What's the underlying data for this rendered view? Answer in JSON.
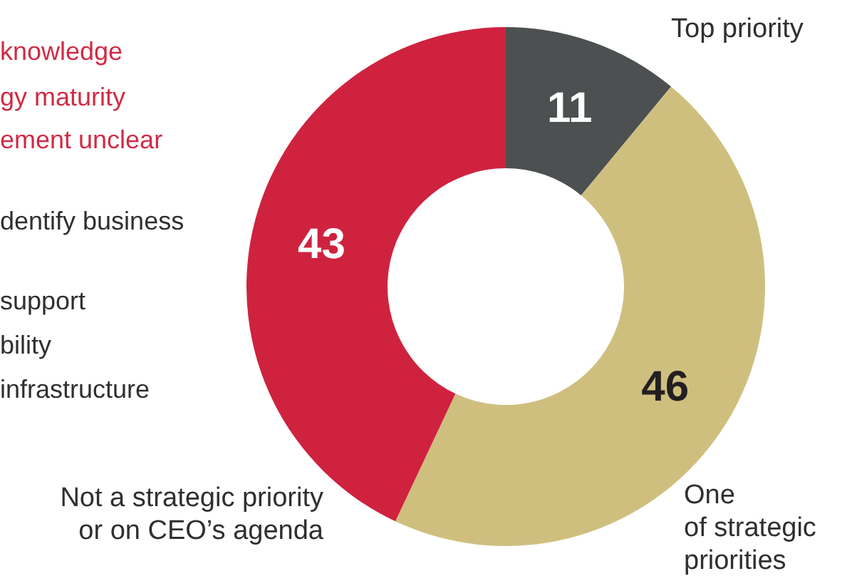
{
  "chart_data": {
    "type": "donut",
    "categories": [
      "Top priority",
      "One\nof strategic\npriorities",
      "Not a strategic priority\nor on CEO’s agenda"
    ],
    "values": [
      11,
      46,
      43
    ],
    "colors": [
      "#4d5050",
      "#cfbf7f",
      "#cf223e"
    ],
    "data_labels": true,
    "annotations": [
      "knowledge",
      "gy maturity",
      "ement unclear",
      "dentify business",
      "support",
      "bility",
      "infrastructure"
    ]
  }
}
